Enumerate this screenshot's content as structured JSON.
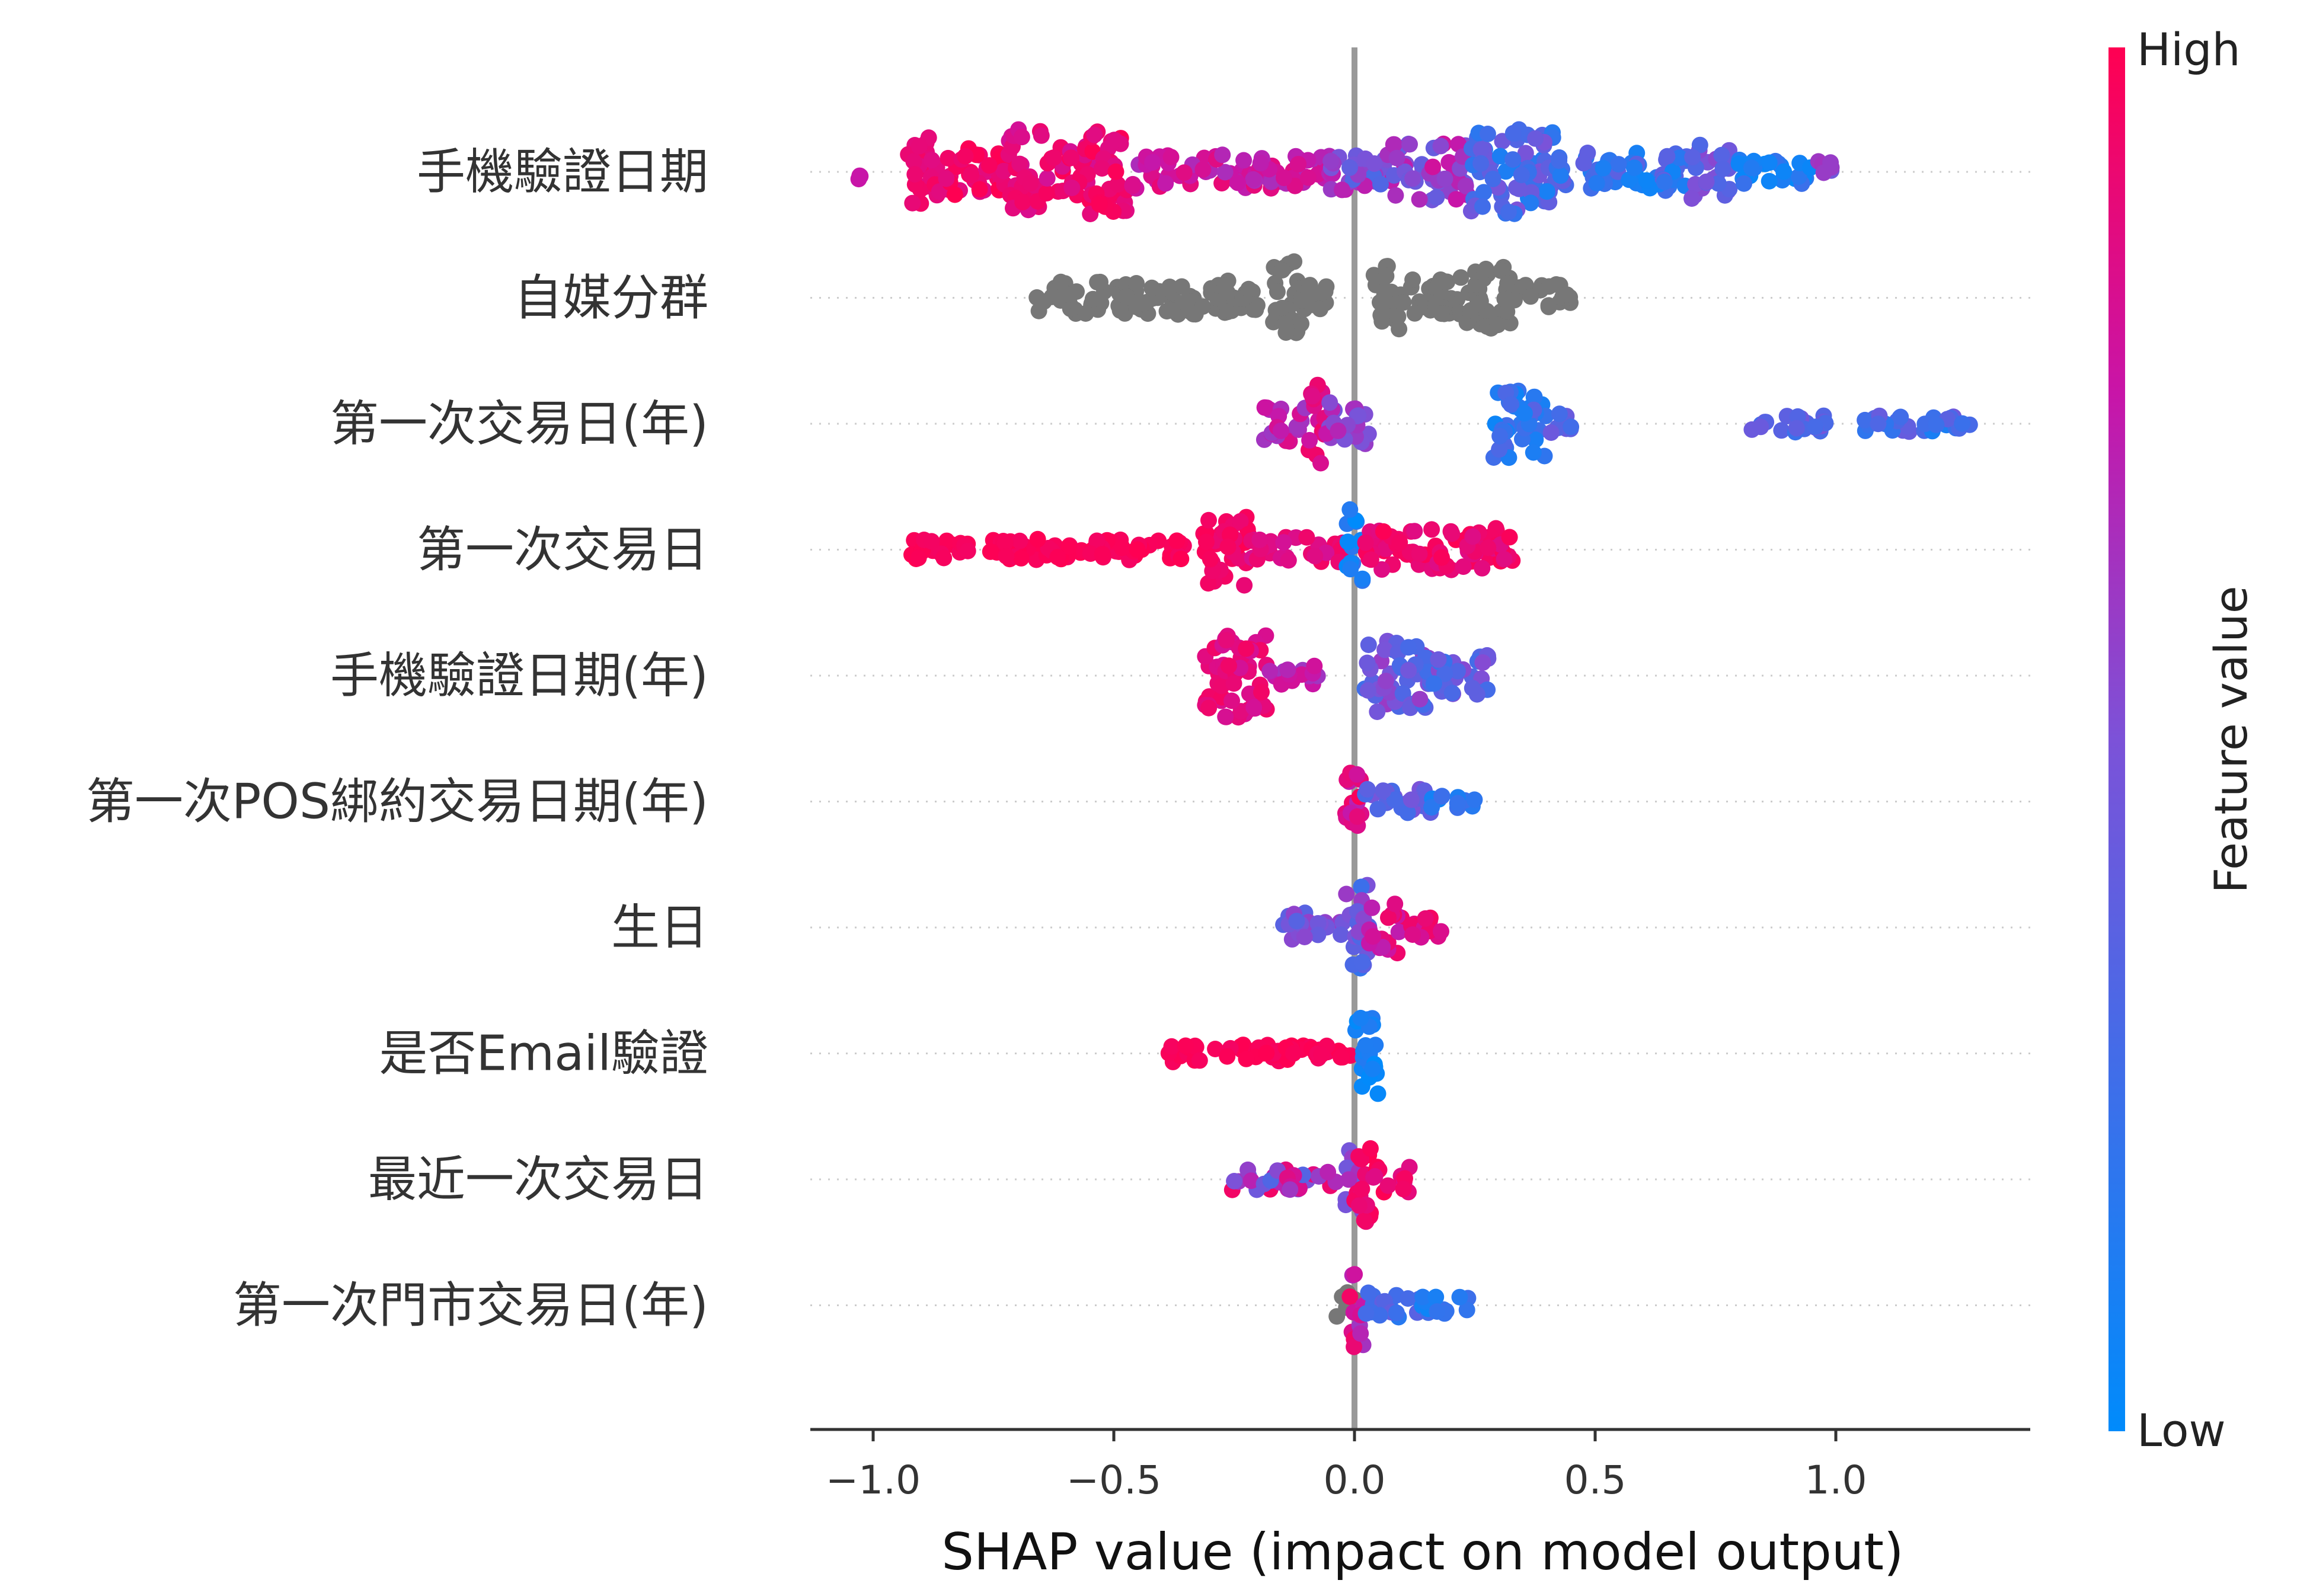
{
  "chart_data": {
    "type": "scatter",
    "subtype": "beeswarm",
    "xlabel": "SHAP value (impact on model output)",
    "xlim": [
      -1.12,
      1.4
    ],
    "xticks": [
      -1.0,
      -0.5,
      0.0,
      0.5,
      1.0
    ],
    "xtick_labels": [
      "−1.0",
      "−0.5",
      "0.0",
      "0.5",
      "1.0"
    ],
    "colorbar": {
      "title": "Feature value",
      "high_label": "High",
      "low_label": "Low",
      "high_color": "#ff0052",
      "low_color": "#008bfb",
      "position": "right"
    },
    "missing_color": "#777777",
    "features": [
      {
        "name": "手機驗證日期",
        "clusters": [
          {
            "x": [
              -1.03,
              -1.02
            ],
            "h": 0.2,
            "v": [
              0.75,
              0.75
            ]
          },
          {
            "x": [
              -0.93,
              -0.88
            ],
            "h": 0.9,
            "v": [
              0.85,
              0.95
            ]
          },
          {
            "x": [
              -0.88,
              -0.72
            ],
            "h": 0.55,
            "v": [
              0.85,
              1.0
            ]
          },
          {
            "x": [
              -0.72,
              -0.65
            ],
            "h": 1.0,
            "v": [
              0.8,
              0.95
            ]
          },
          {
            "x": [
              -0.65,
              -0.55
            ],
            "h": 0.6,
            "v": [
              0.8,
              1.0
            ]
          },
          {
            "x": [
              -0.55,
              -0.47
            ],
            "h": 1.0,
            "v": [
              0.85,
              1.0
            ]
          },
          {
            "x": [
              -0.47,
              -0.05
            ],
            "h": 0.4,
            "v": [
              0.65,
              0.9
            ]
          },
          {
            "x": [
              -0.05,
              0.08
            ],
            "h": 0.45,
            "v": [
              0.3,
              0.75
            ]
          },
          {
            "x": [
              0.08,
              0.24
            ],
            "h": 0.7,
            "v": [
              0.4,
              0.8
            ]
          },
          {
            "x": [
              0.24,
              0.42
            ],
            "h": 1.0,
            "v": [
              0.1,
              0.5
            ]
          },
          {
            "x": [
              0.42,
              0.7
            ],
            "h": 0.45,
            "v": [
              0.05,
              0.4
            ]
          },
          {
            "x": [
              0.7,
              0.78
            ],
            "h": 0.65,
            "v": [
              0.3,
              0.55
            ]
          },
          {
            "x": [
              0.78,
              0.95
            ],
            "h": 0.3,
            "v": [
              0.0,
              0.25
            ]
          },
          {
            "x": [
              0.95,
              1.0
            ],
            "h": 0.25,
            "v": [
              0.45,
              0.65
            ]
          }
        ]
      },
      {
        "name": "自媒分群",
        "missing": true,
        "clusters": [
          {
            "x": [
              -0.66,
              -0.2
            ],
            "h": 0.4
          },
          {
            "x": [
              -0.17,
              -0.11
            ],
            "h": 1.0
          },
          {
            "x": [
              -0.11,
              -0.05
            ],
            "h": 0.3
          },
          {
            "x": [
              0.04,
              0.1
            ],
            "h": 0.8
          },
          {
            "x": [
              0.1,
              0.22
            ],
            "h": 0.45
          },
          {
            "x": [
              0.22,
              0.33
            ],
            "h": 0.75
          },
          {
            "x": [
              0.33,
              0.45
            ],
            "h": 0.35
          }
        ]
      },
      {
        "name": "第一次交易日(年)",
        "clusters": [
          {
            "x": [
              -0.19,
              -0.1
            ],
            "h": 0.45,
            "v": [
              0.6,
              0.85
            ]
          },
          {
            "x": [
              -0.1,
              -0.06
            ],
            "h": 1.0,
            "v": [
              0.75,
              0.95
            ]
          },
          {
            "x": [
              -0.06,
              0.03
            ],
            "h": 0.5,
            "v": [
              0.45,
              0.75
            ]
          },
          {
            "x": [
              0.28,
              0.4
            ],
            "h": 0.8,
            "v": [
              0.05,
              0.35
            ]
          },
          {
            "x": [
              0.4,
              0.45
            ],
            "h": 0.3,
            "v": [
              0.25,
              0.45
            ]
          },
          {
            "x": [
              0.82,
              0.98
            ],
            "h": 0.2,
            "v": [
              0.2,
              0.5
            ]
          },
          {
            "x": [
              1.06,
              1.28
            ],
            "h": 0.2,
            "v": [
              0.1,
              0.45
            ]
          }
        ]
      },
      {
        "name": "第一次交易日",
        "clusters": [
          {
            "x": [
              -0.92,
              -0.35
            ],
            "h": 0.25,
            "v": [
              0.95,
              1.0
            ]
          },
          {
            "x": [
              -0.32,
              -0.22
            ],
            "h": 0.85,
            "v": [
              0.9,
              1.0
            ]
          },
          {
            "x": [
              -0.22,
              -0.02
            ],
            "h": 0.3,
            "v": [
              0.8,
              0.95
            ]
          },
          {
            "x": [
              -0.02,
              0.02
            ],
            "h": 1.0,
            "v": [
              0.0,
              0.25
            ]
          },
          {
            "x": [
              0.02,
              0.33
            ],
            "h": 0.5,
            "v": [
              0.85,
              1.0
            ]
          }
        ]
      },
      {
        "name": "手機驗證日期(年)",
        "clusters": [
          {
            "x": [
              -0.31,
              -0.18
            ],
            "h": 1.0,
            "v": [
              0.8,
              0.95
            ]
          },
          {
            "x": [
              -0.18,
              -0.07
            ],
            "h": 0.25,
            "v": [
              0.6,
              0.8
            ]
          },
          {
            "x": [
              0.02,
              0.16
            ],
            "h": 0.85,
            "v": [
              0.25,
              0.6
            ]
          },
          {
            "x": [
              0.16,
              0.28
            ],
            "h": 0.5,
            "v": [
              0.2,
              0.55
            ]
          }
        ]
      },
      {
        "name": "第一次POS綁約交易日期(年)",
        "clusters": [
          {
            "x": [
              -0.02,
              0.02
            ],
            "h": 1.0,
            "v": [
              0.7,
              1.0
            ]
          },
          {
            "x": [
              0.02,
              0.16
            ],
            "h": 0.3,
            "v": [
              0.25,
              0.5
            ]
          },
          {
            "x": [
              0.16,
              0.25
            ],
            "h": 0.2,
            "v": [
              0.05,
              0.25
            ]
          }
        ]
      },
      {
        "name": "生日",
        "clusters": [
          {
            "x": [
              -0.15,
              -0.02
            ],
            "h": 0.35,
            "v": [
              0.35,
              0.6
            ]
          },
          {
            "x": [
              -0.02,
              0.03
            ],
            "h": 1.0,
            "v": [
              0.2,
              0.6
            ]
          },
          {
            "x": [
              0.03,
              0.1
            ],
            "h": 0.6,
            "v": [
              0.7,
              0.95
            ]
          },
          {
            "x": [
              0.1,
              0.18
            ],
            "h": 0.25,
            "v": [
              0.8,
              1.0
            ]
          }
        ]
      },
      {
        "name": "是否Email驗證",
        "clusters": [
          {
            "x": [
              -0.4,
              0.0
            ],
            "h": 0.2,
            "v": [
              0.95,
              1.0
            ]
          },
          {
            "x": [
              0.0,
              0.05
            ],
            "h": 1.0,
            "v": [
              0.0,
              0.15
            ]
          }
        ]
      },
      {
        "name": "最近一次交易日",
        "clusters": [
          {
            "x": [
              -0.26,
              -0.02
            ],
            "h": 0.25,
            "v": [
              0.3,
              0.95
            ]
          },
          {
            "x": [
              -0.02,
              0.02
            ],
            "h": 0.75,
            "v": [
              0.4,
              0.7
            ]
          },
          {
            "x": [
              0.0,
              0.04
            ],
            "h": 1.0,
            "v": [
              0.85,
              1.0
            ]
          },
          {
            "x": [
              0.04,
              0.12
            ],
            "h": 0.3,
            "v": [
              0.85,
              1.0
            ]
          }
        ]
      },
      {
        "name": "第一次門市交易日(年)",
        "clusters": [
          {
            "x": [
              -0.04,
              0.0
            ],
            "h": 0.3,
            "v": [
              -1,
              -1
            ]
          },
          {
            "x": [
              -0.01,
              0.02
            ],
            "h": 1.0,
            "v": [
              0.6,
              0.95
            ]
          },
          {
            "x": [
              0.02,
              0.14
            ],
            "h": 0.3,
            "v": [
              0.15,
              0.4
            ]
          },
          {
            "x": [
              0.14,
              0.24
            ],
            "h": 0.2,
            "v": [
              0.05,
              0.3
            ]
          }
        ]
      }
    ]
  }
}
